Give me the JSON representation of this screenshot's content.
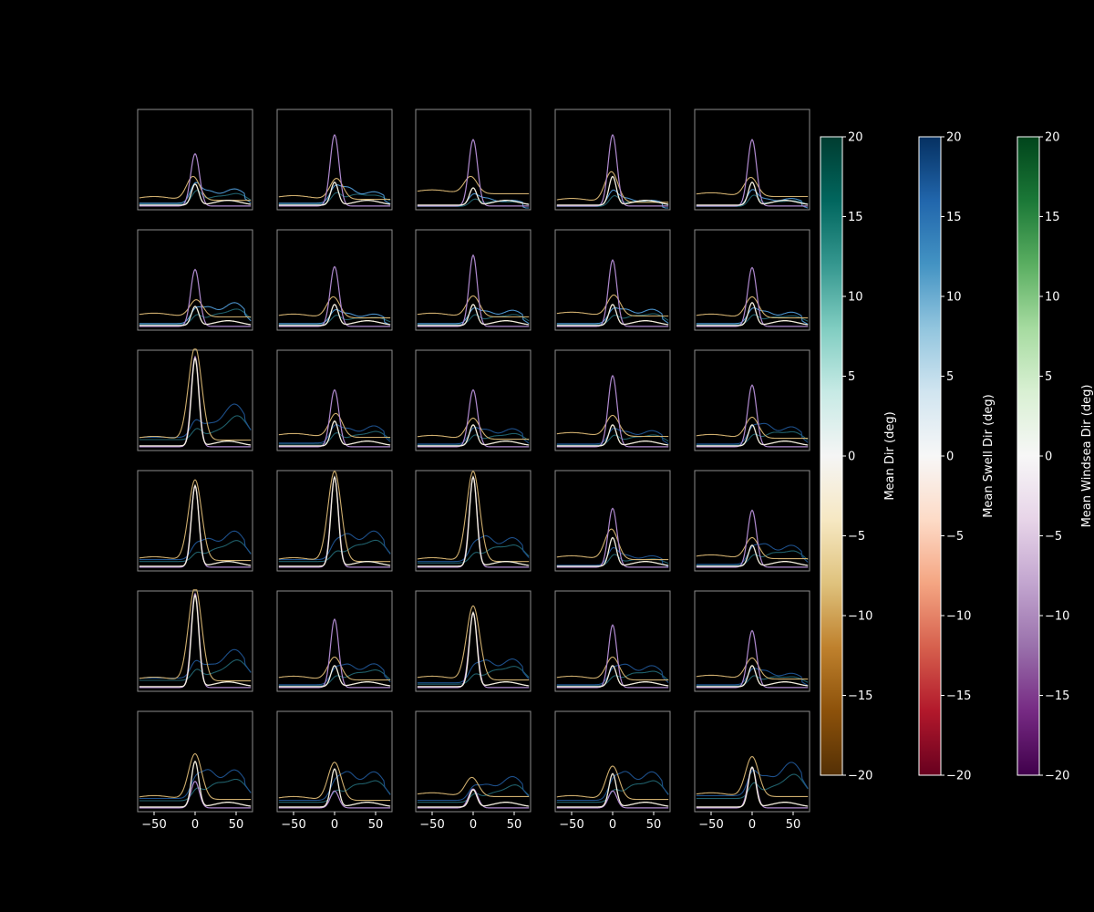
{
  "chart_data": {
    "type": "line",
    "layout": "small-multiples",
    "rows": 6,
    "cols": 5,
    "shared_x_ticks": [
      -50,
      0,
      50
    ],
    "xlim": [
      -70,
      70
    ],
    "x_tick_labels": [
      "−50",
      "0",
      "50"
    ],
    "panel_specs": [
      [
        {
          "w": [
            0.55,
            0.7
          ],
          "m": [
            -8,
            0.25,
            0.05,
            0.03
          ],
          "s": [
            0.35,
            0.15,
            0.12,
            0.05,
            0.38
          ],
          "md": [
            0.22,
            8
          ]
        },
        {
          "w": [
            0.75,
            0.7
          ],
          "m": [
            8,
            0.22,
            0.06,
            0.03
          ],
          "s": [
            0.26,
            0.12,
            0.16,
            0.05,
            0.3
          ],
          "md": [
            0.24,
            10
          ]
        },
        {
          "w": [
            0.7,
            0.7
          ],
          "m": [
            -10,
            0.18,
            0.13,
            0.02
          ],
          "s": [
            0.2,
            0.06,
            0.08,
            0.02,
            0.2
          ],
          "md": [
            0.18,
            -8
          ]
        },
        {
          "w": [
            0.75,
            0.7
          ],
          "m": [
            -5,
            0.32,
            0.04,
            0.02
          ],
          "s": [
            0.28,
            0.06,
            0.08,
            0.02,
            0.3
          ],
          "md": [
            0.3,
            -6
          ]
        },
        {
          "w": [
            0.7,
            0.7
          ],
          "m": [
            -5,
            0.2,
            0.1,
            0.02
          ],
          "s": [
            0.3,
            0.08,
            0.07,
            0.02,
            0.32
          ],
          "md": [
            0.24,
            -5
          ]
        }
      ],
      [
        {
          "w": [
            0.6,
            0.7
          ],
          "m": [
            5,
            0.18,
            0.08,
            0.04
          ],
          "s": [
            0.22,
            0.22,
            0.16,
            0.05,
            0.25
          ],
          "md": [
            0.2,
            10
          ]
        },
        {
          "w": [
            0.63,
            0.7
          ],
          "m": [
            -5,
            0.22,
            0.08,
            0.03
          ],
          "s": [
            0.22,
            0.1,
            0.1,
            0.05,
            0.25
          ],
          "md": [
            0.22,
            -6
          ]
        },
        {
          "w": [
            0.75,
            0.5
          ],
          "m": [
            0,
            0.22,
            0.08,
            0.04
          ],
          "s": [
            0.24,
            0.14,
            0.12,
            0.05,
            0.26
          ],
          "md": [
            0.22,
            4
          ]
        },
        {
          "w": [
            0.7,
            0.6
          ],
          "m": [
            5,
            0.22,
            0.1,
            0.03
          ],
          "s": [
            0.22,
            0.15,
            0.14,
            0.05,
            0.24
          ],
          "md": [
            0.22,
            8
          ]
        },
        {
          "w": [
            0.62,
            0.7
          ],
          "m": [
            0,
            0.22,
            0.08,
            0.03
          ],
          "s": [
            0.24,
            0.12,
            0.12,
            0.05,
            0.26
          ],
          "md": [
            0.24,
            -5
          ]
        }
      ],
      [
        {
          "w": [
            0.95,
            0.4
          ],
          "m": [
            0,
            0.98,
            0.05,
            0.04
          ],
          "s": [
            0.28,
            0.35,
            0.12,
            0.12,
            0.3
          ],
          "md": [
            0.92,
            2
          ]
        },
        {
          "w": [
            0.6,
            0.7
          ],
          "m": [
            5,
            0.25,
            0.08,
            0.04
          ],
          "s": [
            0.28,
            0.18,
            0.14,
            0.06,
            0.3
          ],
          "md": [
            0.26,
            8
          ]
        },
        {
          "w": [
            0.6,
            0.7
          ],
          "m": [
            0,
            0.22,
            0.07,
            0.03
          ],
          "s": [
            0.24,
            0.16,
            0.14,
            0.05,
            0.26
          ],
          "md": [
            0.22,
            4
          ]
        },
        {
          "w": [
            0.75,
            0.7
          ],
          "m": [
            0,
            0.22,
            0.1,
            0.03
          ],
          "s": [
            0.24,
            0.14,
            0.12,
            0.05,
            0.26
          ],
          "md": [
            0.22,
            -6
          ]
        },
        {
          "w": [
            0.65,
            0.7
          ],
          "m": [
            0,
            0.22,
            0.08,
            0.03
          ],
          "s": [
            0.24,
            0.18,
            0.2,
            0.05,
            0.26
          ],
          "md": [
            0.22,
            4
          ]
        }
      ],
      [
        {
          "w": [
            0.85,
            0.4
          ],
          "m": [
            0,
            0.85,
            0.05,
            0.04
          ],
          "s": [
            0.2,
            0.3,
            0.2,
            0.1,
            0.22
          ],
          "md": [
            0.85,
            2
          ]
        },
        {
          "w": [
            0.95,
            0.4
          ],
          "m": [
            0,
            0.95,
            0.04,
            0.04
          ],
          "s": [
            0.22,
            0.3,
            0.25,
            0.1,
            0.24
          ],
          "md": [
            0.94,
            2
          ]
        },
        {
          "w": [
            0.95,
            0.4
          ],
          "m": [
            0,
            0.95,
            0.04,
            0.04
          ],
          "s": [
            0.22,
            0.25,
            0.25,
            0.08,
            0.24
          ],
          "md": [
            0.94,
            2
          ]
        },
        {
          "w": [
            0.62,
            0.7
          ],
          "m": [
            -5,
            0.32,
            0.06,
            0.04
          ],
          "s": [
            0.3,
            0.1,
            0.1,
            0.04,
            0.32
          ],
          "md": [
            0.3,
            -8
          ]
        },
        {
          "w": [
            0.6,
            0.7
          ],
          "m": [
            0,
            0.22,
            0.08,
            0.03
          ],
          "s": [
            0.24,
            0.2,
            0.2,
            0.05,
            0.26
          ],
          "md": [
            0.22,
            4
          ]
        }
      ],
      [
        {
          "w": [
            0.99,
            0.4
          ],
          "m": [
            0,
            0.99,
            0.04,
            0.05
          ],
          "s": [
            0.28,
            0.3,
            0.12,
            0.12,
            0.3
          ],
          "md": [
            0.96,
            2
          ]
        },
        {
          "w": [
            0.72,
            0.5
          ],
          "m": [
            0,
            0.24,
            0.06,
            0.04
          ],
          "s": [
            0.22,
            0.22,
            0.2,
            0.05,
            0.24
          ],
          "md": [
            0.22,
            6
          ]
        },
        {
          "w": [
            0.78,
            0.5
          ],
          "m": [
            0,
            0.78,
            0.06,
            0.04
          ],
          "s": [
            0.22,
            0.25,
            0.22,
            0.07,
            0.24
          ],
          "md": [
            0.78,
            2
          ]
        },
        {
          "w": [
            0.66,
            0.5
          ],
          "m": [
            0,
            0.24,
            0.06,
            0.04
          ],
          "s": [
            0.22,
            0.2,
            0.2,
            0.05,
            0.24
          ],
          "md": [
            0.22,
            4
          ]
        },
        {
          "w": [
            0.6,
            0.7
          ],
          "m": [
            0,
            0.22,
            0.08,
            0.03
          ],
          "s": [
            0.24,
            0.12,
            0.14,
            0.05,
            0.26
          ],
          "md": [
            0.22,
            4
          ]
        }
      ],
      [
        {
          "w": [
            0.28,
            0.6
          ],
          "m": [
            0,
            0.48,
            0.05,
            0.06
          ],
          "s": [
            0.28,
            0.3,
            0.28,
            0.12,
            0.3
          ],
          "md": [
            0.48,
            2
          ]
        },
        {
          "w": [
            0.18,
            0.6
          ],
          "m": [
            0,
            0.4,
            0.05,
            0.05
          ],
          "s": [
            0.25,
            0.3,
            0.28,
            0.1,
            0.28
          ],
          "md": [
            0.4,
            2
          ]
        },
        {
          "w": [
            0.2,
            0.8
          ],
          "m": [
            -5,
            0.2,
            0.1,
            0.04
          ],
          "s": [
            0.2,
            0.25,
            0.15,
            0.1,
            0.22
          ],
          "md": [
            0.18,
            -10
          ]
        },
        {
          "w": [
            0.18,
            0.6
          ],
          "m": [
            0,
            0.35,
            0.06,
            0.05
          ],
          "s": [
            0.28,
            0.3,
            0.28,
            0.1,
            0.3
          ],
          "md": [
            0.35,
            2
          ]
        },
        {
          "w": [
            0.42,
            0.6
          ],
          "m": [
            0,
            0.42,
            0.06,
            0.08
          ],
          "s": [
            0.4,
            0.35,
            0.18,
            0.15,
            0.42
          ],
          "md": [
            0.42,
            6
          ]
        }
      ]
    ],
    "colorbars": [
      {
        "label": "Mean Dir (deg)",
        "colormap": "BrBG",
        "range": [
          -20,
          20
        ],
        "ticks": [
          -20,
          -15,
          -10,
          -5,
          0,
          5,
          10,
          15,
          20
        ],
        "tick_labels": [
          "−20",
          "−15",
          "−10",
          "−5",
          "0",
          "5",
          "10",
          "15",
          "20"
        ]
      },
      {
        "label": "Mean Swell Dir (deg)",
        "colormap": "RdBu",
        "range": [
          -20,
          20
        ],
        "ticks": [
          -20,
          -15,
          -10,
          -5,
          0,
          5,
          10,
          15,
          20
        ],
        "tick_labels": [
          "−20",
          "−15",
          "−10",
          "−5",
          "0",
          "5",
          "10",
          "15",
          "20"
        ]
      },
      {
        "label": "Mean Windsea Dir (deg)",
        "colormap": "PRGn",
        "range": [
          -20,
          20
        ],
        "ticks": [
          -20,
          -15,
          -10,
          -5,
          0,
          5,
          10,
          15,
          20
        ],
        "tick_labels": [
          "−20",
          "−15",
          "−10",
          "−5",
          "0",
          "5",
          "10",
          "15",
          "20"
        ]
      }
    ],
    "colors": {
      "background": "#000000",
      "frame": "#8c8c8c",
      "text": "#ffffff",
      "windsea_series": "#b08ad0",
      "swell_series": "#4a90c8",
      "mean_series": "#f5f0e0"
    }
  }
}
